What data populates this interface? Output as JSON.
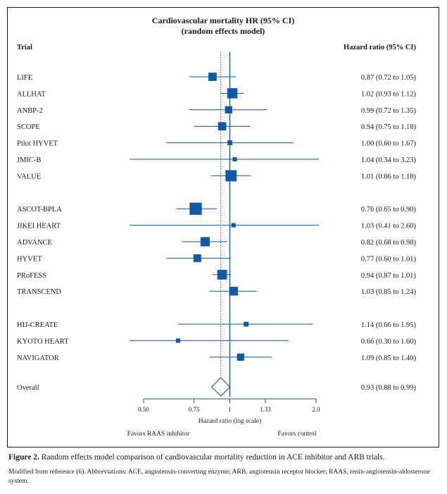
{
  "chart_data": {
    "type": "forest",
    "title": "Cardiovascular mortality HR (95% CI)",
    "subtitle": "(random effects model)",
    "col_left": "Trial",
    "col_right": "Hazard ratio (95% CI)",
    "xlabel": "Hazard ratio (log scale)",
    "x_ticks": [
      0.5,
      0.75,
      1,
      1.33,
      2.0
    ],
    "x_tick_labels": [
      "0.50",
      "0.75",
      "1",
      "1.33",
      "2.0"
    ],
    "xlim": [
      0.5,
      2.0
    ],
    "scale": "log",
    "reference_line": 1,
    "pooled_line": 0.93,
    "favors_left": "Favors RAAS inhibitor",
    "favors_right": "Favors control",
    "groups": [
      {
        "trials": [
          {
            "name": "LIFE",
            "hr": 0.87,
            "lo": 0.72,
            "hi": 1.05,
            "weight": 0.55,
            "label": "0.87 (0.72 to 1.05)"
          },
          {
            "name": "ALLHAT",
            "hr": 1.02,
            "lo": 0.93,
            "hi": 1.12,
            "weight": 0.75,
            "label": "1.02 (0.93 to 1.12)"
          },
          {
            "name": "ANBP-2",
            "hr": 0.99,
            "lo": 0.72,
            "hi": 1.35,
            "weight": 0.45,
            "label": "0.99 (0.72 to 1.35)"
          },
          {
            "name": "SCOPE",
            "hr": 0.94,
            "lo": 0.75,
            "hi": 1.18,
            "weight": 0.55,
            "label": "0.94 (0.75 to 1.18)"
          },
          {
            "name": "Pilot HYVET",
            "hr": 1.0,
            "lo": 0.6,
            "hi": 1.67,
            "weight": 0.2,
            "label": "1.00 (0.60 to 1.67)"
          },
          {
            "name": "JMIC-B",
            "hr": 1.04,
            "lo": 0.34,
            "hi": 3.23,
            "weight": 0.15,
            "label": "1.04 (0.34 to 3.23)"
          },
          {
            "name": "VALUE",
            "hr": 1.01,
            "lo": 0.86,
            "hi": 1.18,
            "weight": 0.85,
            "label": "1.01 (0.86 to 1.18)"
          }
        ]
      },
      {
        "trials": [
          {
            "name": "ASCOT-BPLA",
            "hr": 0.76,
            "lo": 0.65,
            "hi": 0.9,
            "weight": 0.95,
            "label": "0.76 (0.65 to 0.90)"
          },
          {
            "name": "JIKEI HEART",
            "hr": 1.03,
            "lo": 0.41,
            "hi": 2.6,
            "weight": 0.15,
            "label": "1.03 (0.41 to 2.60)"
          },
          {
            "name": "ADVANCE",
            "hr": 0.82,
            "lo": 0.68,
            "hi": 0.98,
            "weight": 0.65,
            "label": "0.82 (0.68 to 0.98)"
          },
          {
            "name": "HYVET",
            "hr": 0.77,
            "lo": 0.6,
            "hi": 1.01,
            "weight": 0.5,
            "label": "0.77 (0.60 to 1.01)"
          },
          {
            "name": "PRoFESS",
            "hr": 0.94,
            "lo": 0.87,
            "hi": 1.01,
            "weight": 0.7,
            "label": "0.94 (0.87 to 1.01)"
          },
          {
            "name": "TRANSCEND",
            "hr": 1.03,
            "lo": 0.85,
            "hi": 1.24,
            "weight": 0.6,
            "label": "1.03 (0.85 to 1.24)"
          }
        ]
      },
      {
        "trials": [
          {
            "name": "HIJ-CREATE",
            "hr": 1.14,
            "lo": 0.66,
            "hi": 1.95,
            "weight": 0.2,
            "label": "1.14 (0.66 to 1.95)"
          },
          {
            "name": "KYOTO HEART",
            "hr": 0.66,
            "lo": 0.3,
            "hi": 1.6,
            "weight": 0.15,
            "label": "0.66 (0.30 to 1.60)"
          },
          {
            "name": "NAVIGATOR",
            "hr": 1.09,
            "lo": 0.85,
            "hi": 1.4,
            "weight": 0.45,
            "label": "1.09 (0.85 to 1.40)"
          }
        ]
      }
    ],
    "overall": {
      "name": "Overall",
      "hr": 0.93,
      "lo": 0.88,
      "hi": 0.99,
      "label": "0.93 (0.88 to 0.99)"
    },
    "colors": {
      "marker": "#0f5aa5",
      "line": "#1a4f8f",
      "text": "#1a1a1a"
    }
  },
  "caption": {
    "label": "Figure 2.",
    "text": " Random effects model comparison of cardiovascular mortality reduction in ACE inhibitor and ARB trials."
  },
  "note": "Modified from reference (6). Abbreviations: ACE, angiotensin-converting enzyme; ARB, angiotensin receptor blocker; RAAS, renin-angiotensin-aldosterone system."
}
